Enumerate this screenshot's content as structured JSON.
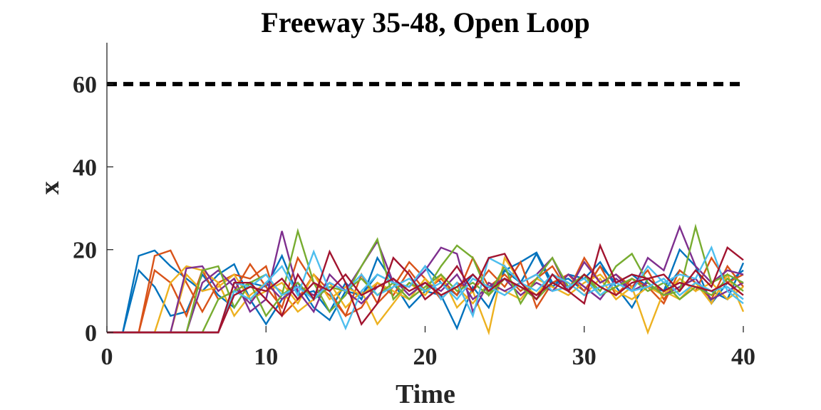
{
  "chart_data": {
    "type": "line",
    "title": "Freeway 35-48, Open Loop",
    "xlabel": "Time",
    "ylabel": "x",
    "xlim": [
      0,
      40
    ],
    "ylim": [
      0,
      70
    ],
    "xticks": [
      "0",
      "10",
      "20",
      "30",
      "40"
    ],
    "yticks": [
      "0",
      "20",
      "40",
      "60"
    ],
    "grid": false,
    "legend": "none",
    "reference_line": {
      "y": 60,
      "x_range": [
        0,
        40
      ],
      "style": "dashed",
      "color": "#000000"
    },
    "x": [
      0,
      1,
      2,
      3,
      4,
      5,
      6,
      7,
      8,
      9,
      10,
      11,
      12,
      13,
      14,
      15,
      16,
      17,
      18,
      19,
      20,
      21,
      22,
      23,
      24,
      25,
      26,
      27,
      28,
      29,
      30,
      31,
      32,
      33,
      34,
      35,
      36,
      37,
      38,
      39,
      40
    ],
    "series": [
      {
        "color": "#0072BD",
        "values": [
          0,
          0,
          18.5,
          19.8,
          16,
          13,
          10,
          14,
          16.5,
          8,
          2,
          8,
          12,
          6,
          3,
          10,
          9,
          14,
          12,
          11,
          16,
          12,
          9,
          14,
          10,
          15,
          17,
          19.3,
          12,
          13,
          10,
          16,
          12,
          14,
          11,
          10,
          15,
          12,
          10,
          8,
          16.8
        ]
      },
      {
        "color": "#0072BD",
        "values": [
          0,
          0,
          15,
          11,
          4,
          5,
          14,
          9,
          6,
          12,
          11,
          18.5,
          9,
          10,
          5,
          12,
          8,
          18,
          12,
          6,
          10,
          9,
          1,
          11,
          6,
          15,
          12,
          19,
          11,
          14,
          13,
          17,
          11,
          6,
          13,
          10,
          20,
          16,
          7,
          12,
          15
        ]
      },
      {
        "color": "#D95319",
        "values": [
          0,
          0,
          0,
          18.5,
          19.8,
          12,
          5,
          12,
          14,
          13,
          16,
          4,
          8,
          14,
          10,
          4,
          6,
          12,
          9,
          15,
          10,
          13,
          9,
          18,
          11,
          14,
          10,
          13,
          16,
          10,
          18,
          12,
          14,
          11,
          15,
          8,
          13,
          10,
          18,
          12,
          14
        ]
      },
      {
        "color": "#D95319",
        "values": [
          0,
          0,
          0,
          15,
          12,
          4,
          15,
          8,
          10,
          16.5,
          11,
          6,
          18,
          12,
          9,
          4,
          14,
          7,
          11,
          17,
          13,
          8,
          12,
          10,
          15,
          11,
          17,
          6,
          12,
          14,
          10,
          16,
          9,
          13,
          11,
          7,
          15,
          12,
          8,
          16,
          11
        ]
      },
      {
        "color": "#EDB120",
        "values": [
          0,
          0,
          0,
          0,
          12,
          16,
          15,
          12,
          4,
          9,
          12,
          10,
          5,
          8,
          12,
          6,
          10,
          2,
          7,
          12,
          9,
          14,
          6,
          10,
          0,
          18,
          12,
          9,
          14,
          12,
          9,
          13,
          8,
          11,
          0,
          10,
          8,
          12,
          7,
          14,
          5
        ]
      },
      {
        "color": "#EDB120",
        "values": [
          0,
          0,
          0,
          0,
          0,
          14,
          10,
          11,
          14,
          8,
          10,
          12,
          7,
          14,
          8,
          11,
          9,
          12,
          10,
          8,
          13,
          9,
          11,
          7,
          12,
          10,
          8,
          13,
          11,
          9,
          12,
          14,
          10,
          8,
          11,
          9,
          13,
          10,
          12,
          8,
          11
        ]
      },
      {
        "color": "#7E2F8E",
        "values": [
          0,
          0,
          0,
          0,
          0,
          15.5,
          16,
          10,
          13,
          5,
          8,
          24.5,
          10,
          5,
          14,
          10,
          16,
          22,
          12,
          11,
          15,
          20.5,
          19,
          5,
          12,
          10,
          12,
          14,
          18,
          10,
          17,
          12,
          14,
          10,
          18,
          15,
          25.5,
          16,
          12,
          15,
          14
        ]
      },
      {
        "color": "#7E2F8E",
        "values": [
          0,
          0,
          0,
          0,
          0,
          0,
          12,
          15,
          11,
          7,
          12,
          8,
          11,
          9,
          12,
          10,
          7,
          11,
          13,
          9,
          12,
          10,
          14,
          8,
          11,
          13,
          9,
          12,
          10,
          14,
          11,
          8,
          13,
          10,
          12,
          9,
          11,
          13,
          8,
          10,
          12
        ]
      },
      {
        "color": "#77AC30",
        "values": [
          0,
          0,
          0,
          0,
          0,
          0,
          15,
          16,
          6,
          12,
          4,
          9,
          24.5,
          12,
          5,
          9,
          16,
          22.5,
          8,
          12,
          10,
          16,
          21,
          18,
          9,
          16,
          7,
          13,
          18,
          11,
          14,
          10,
          16,
          19,
          12,
          9,
          10,
          25.5,
          12,
          14,
          12
        ]
      },
      {
        "color": "#77AC30",
        "values": [
          0,
          0,
          0,
          0,
          0,
          0,
          0,
          8,
          10,
          12,
          14,
          9,
          12,
          8,
          11,
          10,
          13,
          9,
          12,
          8,
          11,
          14,
          10,
          12,
          9,
          13,
          11,
          8,
          12,
          10,
          14,
          9,
          11,
          13,
          10,
          12,
          8,
          11,
          9,
          13,
          10
        ]
      },
      {
        "color": "#4DBEEE",
        "values": [
          0,
          0,
          0,
          0,
          0,
          0,
          0,
          0,
          10,
          8,
          12,
          16,
          9,
          19.5,
          10,
          1,
          10,
          14,
          12,
          11,
          16,
          8,
          12,
          4,
          18,
          16,
          12,
          10,
          14,
          12,
          9,
          11,
          12,
          10,
          16,
          12,
          14,
          13,
          20.5,
          10,
          7
        ]
      },
      {
        "color": "#4DBEEE",
        "values": [
          0,
          0,
          0,
          0,
          0,
          0,
          0,
          0,
          12,
          11,
          14,
          9,
          11,
          8,
          12,
          10,
          14,
          9,
          11,
          13,
          10,
          12,
          8,
          13,
          11,
          9,
          12,
          14,
          10,
          11,
          13,
          9,
          12,
          10,
          11,
          13,
          9,
          12,
          10,
          11,
          8
        ]
      },
      {
        "color": "#A2142F",
        "values": [
          0,
          0,
          0,
          0,
          0,
          0,
          0,
          0,
          12,
          12,
          8,
          4,
          14,
          8,
          19.5,
          12,
          2,
          7,
          18,
          14,
          8,
          11,
          16,
          10,
          18,
          19,
          12,
          8,
          14,
          10,
          7,
          21,
          12,
          14,
          13,
          14,
          10,
          15,
          11,
          20.5,
          17.5
        ]
      },
      {
        "color": "#A2142F",
        "values": [
          0,
          0,
          0,
          0,
          0,
          0,
          0,
          0,
          9,
          11,
          10,
          13,
          8,
          12,
          10,
          14,
          9,
          11,
          13,
          10,
          12,
          9,
          11,
          14,
          10,
          13,
          11,
          9,
          12,
          10,
          14,
          11,
          9,
          12,
          13,
          10,
          12,
          11,
          10,
          12,
          9
        ]
      }
    ]
  }
}
